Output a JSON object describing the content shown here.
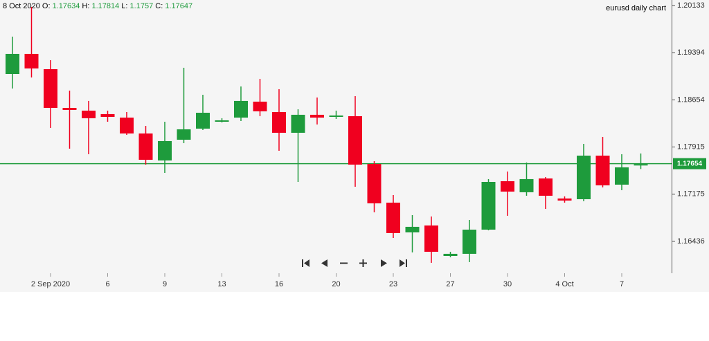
{
  "chart_data": {
    "type": "candlestick",
    "title": "eurusd daily chart",
    "header_date": "8 Oct 2020",
    "ohlc_labels": [
      "O:",
      "H:",
      "L:",
      "C:"
    ],
    "categories": [
      null,
      null,
      "2 Sep 2020",
      null,
      null,
      "6",
      null,
      null,
      "9",
      null,
      null,
      "13",
      null,
      null,
      "16",
      null,
      null,
      "20",
      null,
      null,
      "23",
      null,
      null,
      "27",
      null,
      null,
      "30",
      null,
      null,
      "4 Oct",
      null,
      null,
      "7",
      null
    ],
    "open": [
      1.19059,
      1.19374,
      1.19135,
      1.18528,
      1.18485,
      1.18431,
      1.18376,
      1.18127,
      1.17704,
      1.18029,
      1.18203,
      1.18311,
      1.18376,
      1.18626,
      1.18463,
      1.18138,
      1.1842,
      1.18387,
      1.18398,
      1.1765,
      1.17043,
      1.16577,
      1.16685,
      1.16208,
      1.16241,
      1.1662,
      1.17379,
      1.17206,
      1.17422,
      1.17108,
      1.17097,
      1.1778,
      1.17325,
      1.17634
    ],
    "high": [
      1.19645,
      1.20111,
      1.19276,
      1.18799,
      1.18637,
      1.18485,
      1.18463,
      1.18246,
      1.18311,
      1.19157,
      1.18734,
      1.18366,
      1.18864,
      1.18983,
      1.18821,
      1.18506,
      1.18691,
      1.18485,
      1.18712,
      1.17693,
      1.17162,
      1.16848,
      1.16826,
      1.16273,
      1.16772,
      1.17412,
      1.17531,
      1.17672,
      1.17444,
      1.17141,
      1.17964,
      1.18073,
      1.17802,
      1.17814
    ],
    "low": [
      1.18832,
      1.19005,
      1.18214,
      1.17889,
      1.17802,
      1.18311,
      1.18105,
      1.17639,
      1.17509,
      1.17975,
      1.18181,
      1.183,
      1.18322,
      1.18398,
      1.17856,
      1.17368,
      1.18268,
      1.18355,
      1.17292,
      1.16891,
      1.1649,
      1.16263,
      1.161,
      1.16187,
      1.16111,
      1.16609,
      1.16837,
      1.17151,
      1.16945,
      1.17043,
      1.17065,
      1.17282,
      1.17238,
      1.1757
    ],
    "close": [
      1.19374,
      1.19146,
      1.18528,
      1.18496,
      1.18366,
      1.18387,
      1.18127,
      1.17715,
      1.18008,
      1.18192,
      1.18452,
      1.18333,
      1.18637,
      1.18474,
      1.18138,
      1.1842,
      1.18376,
      1.18409,
      1.17639,
      1.17032,
      1.16566,
      1.16664,
      1.16273,
      1.16241,
      1.1662,
      1.17368,
      1.17216,
      1.17412,
      1.17151,
      1.17076,
      1.1778,
      1.17314,
      1.17596,
      1.17647
    ],
    "up_color": "#1e9b3c",
    "down_color": "#f0001f",
    "current_price": 1.17654,
    "current_price_color": "#1e9b3c",
    "ylim": [
      1.15937,
      1.20219
    ],
    "yticks": [
      1.16436,
      1.17175,
      1.17915,
      1.18654,
      1.19394,
      1.20133
    ]
  }
}
